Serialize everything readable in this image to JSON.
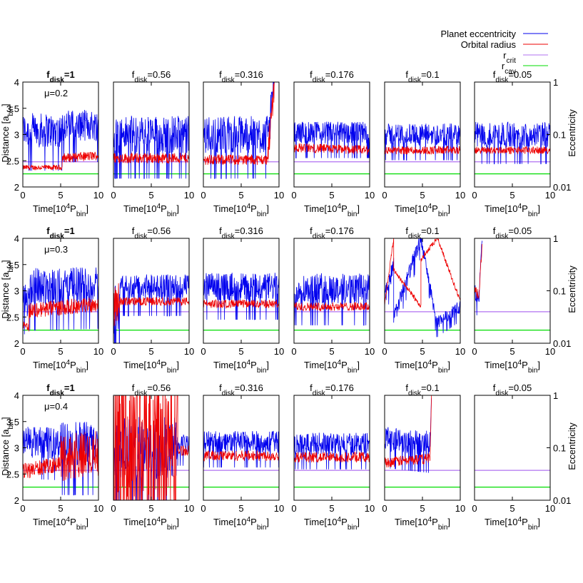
{
  "colors": {
    "ecc": "#0000ee",
    "orb": "#ee0000",
    "rcrit": "#b070f0",
    "rcav": "#00dd00",
    "axis": "#000000"
  },
  "legend": [
    {
      "label": "Planet eccentricity",
      "color": "#0000ee"
    },
    {
      "label": "Orbital radius",
      "color": "#ee0000"
    },
    {
      "label": "r",
      "sub": "crit",
      "color": "#b070f0"
    },
    {
      "label": "r",
      "sub": "cav",
      "color": "#00dd00"
    }
  ],
  "axes": {
    "xlabel": "Time[10",
    "xlabel_sup": "4",
    "xlabel_mid": "P",
    "xlabel_sub": "bin",
    "xlabel_end": "]",
    "ylabel_left": "Distance [a",
    "ylabel_left_sub": "bin",
    "ylabel_left_end": "]",
    "ylabel_right": "Eccentricity",
    "xticks": [
      "0",
      "5",
      "10"
    ],
    "yticks_left": [
      "2",
      "2.5",
      "3",
      "3.5",
      "4"
    ],
    "yticks_right": [
      "0.01",
      "0.1",
      "1"
    ]
  },
  "panel_title_prefix": "f",
  "panel_title_sub": "disk",
  "chart_data": {
    "type": "line",
    "x_range": [
      0,
      10
    ],
    "y_left_range": [
      2,
      4
    ],
    "y_right_range": [
      0.01,
      1
    ],
    "y_right_scale": "log",
    "columns": [
      "=1",
      "=0.56",
      "=0.316",
      "=0.176",
      "=0.1",
      "=0.05"
    ],
    "rows": [
      {
        "mu_label": "μ=0.2",
        "r_crit": 2.48,
        "r_cav": 2.25,
        "panels": [
          {
            "f": "=1",
            "segs": [
              {
                "t": [
                  0,
                  5.2
                ],
                "orb": [
                  2.37,
                  2.37
                ],
                "orbAmp": 0.05,
                "ecc": [
                  0.12,
                  0.12
                ],
                "eccAmp": 0.55
              },
              {
                "t": [
                  5.2,
                  10
                ],
                "orb": [
                  2.55,
                  2.6
                ],
                "orbAmp": 0.09,
                "ecc": [
                  0.15,
                  0.15
                ],
                "eccAmp": 0.5
              }
            ]
          },
          {
            "f": "=0.56",
            "segs": [
              {
                "t": [
                  0,
                  10
                ],
                "orb": [
                  2.55,
                  2.55
                ],
                "orbAmp": 0.1,
                "ecc": [
                  0.1,
                  0.1
                ],
                "eccAmp": 0.6
              }
            ]
          },
          {
            "f": "=0.316",
            "segs": [
              {
                "t": [
                  0,
                  8.5
                ],
                "orb": [
                  2.52,
                  2.52
                ],
                "orbAmp": 0.1,
                "ecc": [
                  0.1,
                  0.1
                ],
                "eccAmp": 0.6
              },
              {
                "t": [
                  8.5,
                  9.4
                ],
                "orb": [
                  2.6,
                  4.0
                ],
                "orbAmp": 0.3,
                "ecc": [
                  0.15,
                  1.0
                ],
                "eccAmp": 0.4
              }
            ]
          },
          {
            "f": "=0.176",
            "segs": [
              {
                "t": [
                  0,
                  10
                ],
                "orb": [
                  2.75,
                  2.7
                ],
                "orbAmp": 0.09,
                "ecc": [
                  0.11,
                  0.11
                ],
                "eccAmp": 0.35
              }
            ]
          },
          {
            "f": "=0.1",
            "segs": [
              {
                "t": [
                  0,
                  10
                ],
                "orb": [
                  2.7,
                  2.7
                ],
                "orbAmp": 0.08,
                "ecc": [
                  0.1,
                  0.1
                ],
                "eccAmp": 0.35
              }
            ]
          },
          {
            "f": "=0.05",
            "segs": [
              {
                "t": [
                  0,
                  10
                ],
                "orb": [
                  2.7,
                  2.7
                ],
                "orbAmp": 0.07,
                "ecc": [
                  0.1,
                  0.1
                ],
                "eccAmp": 0.4
              }
            ]
          }
        ]
      },
      {
        "mu_label": "μ=0.3",
        "r_crit": 2.6,
        "r_cav": 2.25,
        "panels": [
          {
            "f": "=1",
            "segs": [
              {
                "t": [
                  0,
                  0.8
                ],
                "orb": [
                  2.38,
                  2.3
                ],
                "orbAmp": 0.08,
                "ecc": [
                  0.08,
                  0.06
                ],
                "eccAmp": 0.5
              },
              {
                "t": [
                  0.8,
                  10
                ],
                "orb": [
                  2.62,
                  2.75
                ],
                "orbAmp": 0.15,
                "ecc": [
                  0.12,
                  0.13
                ],
                "eccAmp": 0.6
              }
            ]
          },
          {
            "f": "=0.56",
            "segs": [
              {
                "t": [
                  0,
                  0.8
                ],
                "orb": [
                  2.6,
                  2.9
                ],
                "orbAmp": 0.4,
                "ecc": [
                  0.05,
                  0.03
                ],
                "eccAmp": 0.9
              },
              {
                "t": [
                  0.8,
                  10
                ],
                "orb": [
                  2.8,
                  2.8
                ],
                "orbAmp": 0.08,
                "ecc": [
                  0.12,
                  0.12
                ],
                "eccAmp": 0.4
              }
            ]
          },
          {
            "f": "=0.316",
            "segs": [
              {
                "t": [
                  0,
                  10
                ],
                "orb": [
                  2.75,
                  2.75
                ],
                "orbAmp": 0.08,
                "ecc": [
                  0.12,
                  0.12
                ],
                "eccAmp": 0.45
              }
            ]
          },
          {
            "f": "=0.176",
            "segs": [
              {
                "t": [
                  0,
                  10
                ],
                "orb": [
                  2.7,
                  2.7
                ],
                "orbAmp": 0.08,
                "ecc": [
                  0.11,
                  0.11
                ],
                "eccAmp": 0.5
              }
            ]
          },
          {
            "f": "=0.1",
            "segs": [
              {
                "t": [
                  0,
                  1.2
                ],
                "orb": [
                  2.75,
                  4.0
                ],
                "orbAmp": 0.05,
                "ecc": [
                  0.08,
                  0.3
                ],
                "eccAmp": 0.3
              },
              {
                "t": [
                  1.2,
                  4.8
                ],
                "orb": [
                  3.4,
                  2.7
                ],
                "orbAmp": 0.05,
                "ecc": [
                  0.03,
                  1.0
                ],
                "eccAmp": 0.25
              },
              {
                "t": [
                  4.8,
                  7.0
                ],
                "orb": [
                  3.6,
                  4.0
                ],
                "orbAmp": 0.05,
                "ecc": [
                  1.0,
                  0.02
                ],
                "eccAmp": 0.2
              },
              {
                "t": [
                  7.0,
                  10
                ],
                "orb": [
                  4.0,
                  2.8
                ],
                "orbAmp": 0.05,
                "ecc": [
                  0.025,
                  0.05
                ],
                "eccAmp": 0.2
              }
            ]
          },
          {
            "f": "=0.05",
            "segs": [
              {
                "t": [
                  0,
                  0.6
                ],
                "orb": [
                  3.0,
                  2.9
                ],
                "orbAmp": 0.1,
                "ecc": [
                  0.1,
                  0.08
                ],
                "eccAmp": 0.3
              },
              {
                "t": [
                  0.6,
                  1.0
                ],
                "orb": [
                  2.9,
                  3.9
                ],
                "orbAmp": 0.1,
                "ecc": [
                  0.08,
                  1.0
                ],
                "eccAmp": 0.2
              }
            ]
          }
        ]
      },
      {
        "mu_label": "μ=0.4",
        "r_crit": 2.57,
        "r_cav": 2.25,
        "panels": [
          {
            "f": "=1",
            "segs": [
              {
                "t": [
                  0,
                  5
                ],
                "orb": [
                  2.55,
                  2.7
                ],
                "orbAmp": 0.15,
                "ecc": [
                  0.13,
                  0.12
                ],
                "eccAmp": 0.5
              },
              {
                "t": [
                  5,
                  10
                ],
                "orb": [
                  2.8,
                  2.9
                ],
                "orbAmp": 0.45,
                "ecc": [
                  0.12,
                  0.12
                ],
                "eccAmp": 0.7
              }
            ]
          },
          {
            "f": "=0.56",
            "segs": [
              {
                "t": [
                  0,
                  8.5
                ],
                "orb": [
                  3.0,
                  3.0
                ],
                "orbAmp": 1.6,
                "ecc": [
                  0.1,
                  0.1
                ],
                "eccAmp": 1.0
              },
              {
                "t": [
                  8.5,
                  10
                ],
                "orb": [
                  2.95,
                  2.95
                ],
                "orbAmp": 0.1,
                "ecc": [
                  0.12,
                  0.12
                ],
                "eccAmp": 0.3
              }
            ]
          },
          {
            "f": "=0.316",
            "segs": [
              {
                "t": [
                  0,
                  10
                ],
                "orb": [
                  2.85,
                  2.85
                ],
                "orbAmp": 0.1,
                "ecc": [
                  0.13,
                  0.13
                ],
                "eccAmp": 0.35
              }
            ]
          },
          {
            "f": "=0.176",
            "segs": [
              {
                "t": [
                  0,
                  10
                ],
                "orb": [
                  2.82,
                  2.82
                ],
                "orbAmp": 0.1,
                "ecc": [
                  0.12,
                  0.12
                ],
                "eccAmp": 0.35
              }
            ]
          },
          {
            "f": "=0.1",
            "segs": [
              {
                "t": [
                  0,
                  6
                ],
                "orb": [
                  2.72,
                  2.8
                ],
                "orbAmp": 0.1,
                "ecc": [
                  0.15,
                  0.12
                ],
                "eccAmp": 0.4
              },
              {
                "t": [
                  6,
                  6.2
                ],
                "orb": [
                  2.8,
                  4.0
                ],
                "orbAmp": 0.05,
                "ecc": [
                  0.12,
                  1.0
                ],
                "eccAmp": 0.1
              }
            ]
          },
          {
            "f": "=0.05",
            "segs": []
          }
        ]
      }
    ]
  }
}
